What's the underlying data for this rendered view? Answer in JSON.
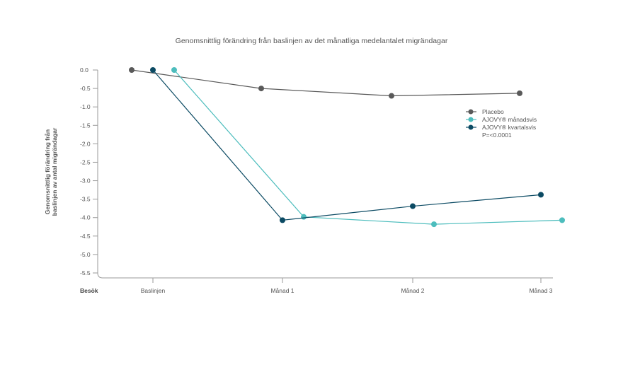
{
  "chart_data": {
    "type": "line",
    "title": "Genomsnittlig förändring från baslinjen av det månatliga medelantalet migrändagar",
    "ylabel_lines": [
      "Genomsnittlig förändring från",
      "baslinjen av antal migrändagar"
    ],
    "xlabel_row": "Besök",
    "categories": [
      "Baslinjen",
      "Månad 1",
      "Månad 2",
      "Månad 3"
    ],
    "yticks": [
      "0.0",
      "-0.5",
      "-1.0",
      "-1.5",
      "-2.0",
      "-2.5",
      "-3.0",
      "-3.5",
      "-4.0",
      "-4.5",
      "-5.0",
      "-5.5"
    ],
    "ylim": [
      -5.5,
      0
    ],
    "grid": false,
    "legend_position": "right",
    "series": [
      {
        "name": "Placebo",
        "color": "#595959",
        "values": [
          0.0,
          -0.5,
          -0.7,
          -0.63
        ]
      },
      {
        "name": "AJOVY® månadsvis",
        "color": "#4dbdbd",
        "values": [
          0.0,
          -3.98,
          -4.18,
          -4.07
        ]
      },
      {
        "name": "AJOVY® kvartalsvis",
        "color": "#0b4a63",
        "values": [
          0.0,
          -4.07,
          -3.69,
          -3.38
        ]
      }
    ],
    "annotation": "P=<0.0001"
  }
}
